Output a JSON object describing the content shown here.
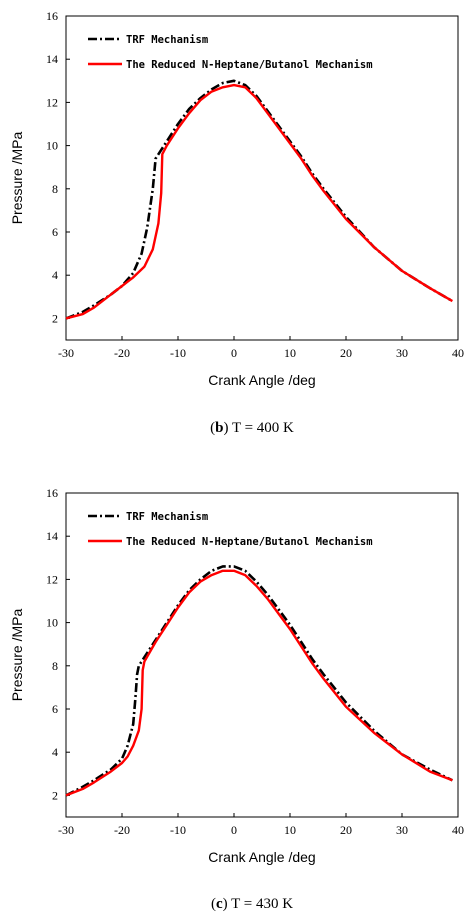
{
  "chart_data": [
    {
      "type": "line",
      "caption_letter": "b",
      "caption_text": "T = 400 K",
      "xlabel": "Crank Angle /deg",
      "ylabel": "Pressure /MPa",
      "xlim": [
        -30,
        40
      ],
      "ylim": [
        1,
        16
      ],
      "xticks": [
        -30,
        -20,
        -10,
        0,
        10,
        20,
        30,
        40
      ],
      "yticks": [
        2,
        4,
        6,
        8,
        10,
        12,
        14,
        16
      ],
      "grid": false,
      "legend_position": "top-left",
      "series": [
        {
          "name": "TRF Mechanism",
          "color": "#000000",
          "style": "dash-dot",
          "x": [
            -30,
            -27,
            -25,
            -22,
            -20,
            -18,
            -16.5,
            -15.5,
            -14.5,
            -14,
            -13,
            -12,
            -10,
            -8,
            -6,
            -4,
            -2,
            0,
            2,
            4,
            6,
            8,
            10,
            12,
            14,
            16,
            20,
            25,
            30,
            35,
            39
          ],
          "y": [
            2.0,
            2.3,
            2.6,
            3.1,
            3.5,
            4.1,
            5.0,
            6.2,
            8.0,
            9.4,
            9.8,
            10.2,
            11.0,
            11.7,
            12.2,
            12.6,
            12.9,
            13.0,
            12.8,
            12.3,
            11.6,
            10.9,
            10.2,
            9.5,
            8.7,
            8.0,
            6.7,
            5.3,
            4.2,
            3.4,
            2.8
          ]
        },
        {
          "name": "The Reduced N-Heptane/Butanol Mechanism",
          "color": "#ff0000",
          "style": "solid",
          "x": [
            -30,
            -27,
            -25,
            -22,
            -20,
            -18,
            -16,
            -14.5,
            -13.5,
            -13,
            -12.8,
            -12,
            -10,
            -8,
            -6,
            -4,
            -2,
            0,
            2,
            4,
            6,
            8,
            10,
            12,
            14,
            16,
            20,
            25,
            30,
            35,
            39
          ],
          "y": [
            2.0,
            2.2,
            2.5,
            3.1,
            3.5,
            3.9,
            4.4,
            5.2,
            6.4,
            7.8,
            9.6,
            10.0,
            10.8,
            11.5,
            12.1,
            12.5,
            12.7,
            12.8,
            12.7,
            12.2,
            11.5,
            10.8,
            10.1,
            9.4,
            8.6,
            7.9,
            6.6,
            5.3,
            4.2,
            3.4,
            2.8
          ]
        }
      ]
    },
    {
      "type": "line",
      "caption_letter": "c",
      "caption_text": "T = 430 K",
      "xlabel": "Crank Angle /deg",
      "ylabel": "Pressure /MPa",
      "xlim": [
        -30,
        40
      ],
      "ylim": [
        1,
        16
      ],
      "xticks": [
        -30,
        -20,
        -10,
        0,
        10,
        20,
        30,
        40
      ],
      "yticks": [
        2,
        4,
        6,
        8,
        10,
        12,
        14,
        16
      ],
      "grid": false,
      "legend_position": "top-left",
      "series": [
        {
          "name": "TRF Mechanism",
          "color": "#000000",
          "style": "dash-dot",
          "x": [
            -30,
            -27,
            -25,
            -22,
            -20,
            -19,
            -18,
            -17.6,
            -17.3,
            -17,
            -16,
            -14,
            -12,
            -10,
            -8,
            -6,
            -4,
            -2,
            0,
            2,
            4,
            6,
            8,
            10,
            12,
            14,
            16,
            20,
            25,
            30,
            35,
            39
          ],
          "y": [
            2.0,
            2.4,
            2.7,
            3.2,
            3.7,
            4.3,
            5.3,
            6.5,
            7.6,
            8.0,
            8.4,
            9.2,
            10.0,
            10.8,
            11.5,
            12.0,
            12.4,
            12.6,
            12.6,
            12.4,
            11.9,
            11.3,
            10.6,
            9.9,
            9.1,
            8.3,
            7.6,
            6.3,
            5.0,
            3.9,
            3.2,
            2.7
          ]
        },
        {
          "name": "The Reduced N-Heptane/Butanol Mechanism",
          "color": "#ff0000",
          "style": "solid",
          "x": [
            -30,
            -27,
            -25,
            -22,
            -20,
            -19,
            -18,
            -17,
            -16.5,
            -16.3,
            -16,
            -14,
            -12,
            -10,
            -8,
            -6,
            -4,
            -2,
            0,
            2,
            4,
            6,
            8,
            10,
            12,
            14,
            16,
            20,
            25,
            30,
            35,
            39
          ],
          "y": [
            2.0,
            2.3,
            2.6,
            3.1,
            3.5,
            3.8,
            4.3,
            5.0,
            6.0,
            7.8,
            8.2,
            9.1,
            9.9,
            10.7,
            11.4,
            11.9,
            12.2,
            12.4,
            12.4,
            12.2,
            11.7,
            11.1,
            10.4,
            9.7,
            8.9,
            8.1,
            7.4,
            6.1,
            4.9,
            3.9,
            3.1,
            2.7
          ]
        }
      ]
    }
  ]
}
